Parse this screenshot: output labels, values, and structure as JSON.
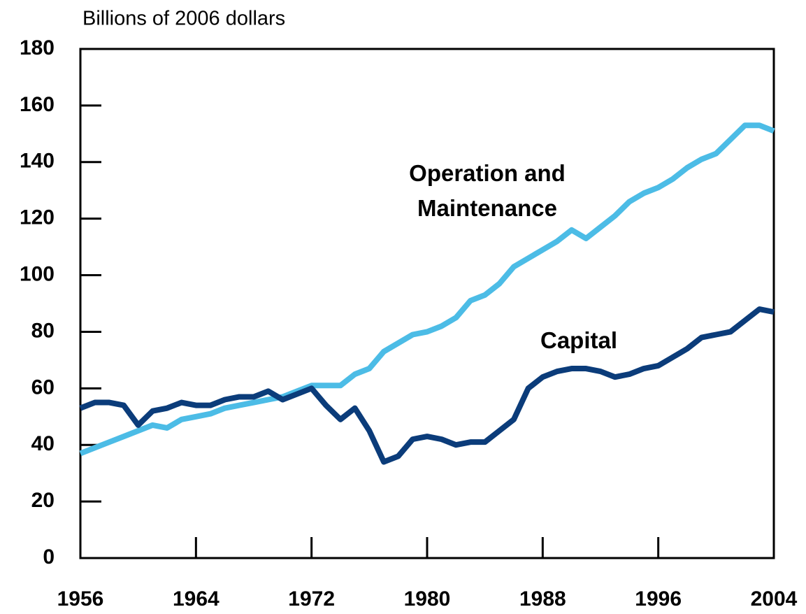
{
  "chart_data": {
    "type": "line",
    "y_axis_label": "Billions of 2006 dollars",
    "x": [
      1956,
      1957,
      1958,
      1959,
      1960,
      1961,
      1962,
      1963,
      1964,
      1965,
      1966,
      1967,
      1968,
      1969,
      1970,
      1971,
      1972,
      1973,
      1974,
      1975,
      1976,
      1977,
      1978,
      1979,
      1980,
      1981,
      1982,
      1983,
      1984,
      1985,
      1986,
      1987,
      1988,
      1989,
      1990,
      1991,
      1992,
      1993,
      1994,
      1995,
      1996,
      1997,
      1998,
      1999,
      2000,
      2001,
      2002,
      2003,
      2004
    ],
    "series": [
      {
        "name": "Operation and Maintenance",
        "color": "#4cbce6",
        "values": [
          37,
          39,
          41,
          43,
          45,
          47,
          46,
          49,
          50,
          51,
          53,
          54,
          55,
          56,
          57,
          59,
          61,
          61,
          61,
          65,
          67,
          73,
          76,
          79,
          80,
          82,
          85,
          91,
          93,
          97,
          103,
          106,
          109,
          112,
          116,
          113,
          117,
          121,
          126,
          129,
          131,
          134,
          138,
          141,
          143,
          148,
          153,
          153,
          151
        ]
      },
      {
        "name": "Capital",
        "color": "#0b3c7a",
        "values": [
          53,
          55,
          55,
          54,
          47,
          52,
          53,
          55,
          54,
          54,
          56,
          57,
          57,
          59,
          56,
          58,
          60,
          54,
          49,
          53,
          45,
          34,
          36,
          42,
          43,
          42,
          40,
          41,
          41,
          45,
          49,
          60,
          64,
          66,
          67,
          67,
          66,
          64,
          65,
          67,
          68,
          71,
          74,
          78,
          79,
          80,
          84,
          88,
          87
        ]
      }
    ],
    "xlim": [
      1956,
      2004
    ],
    "xticks": [
      1956,
      1964,
      1972,
      1980,
      1988,
      1996,
      2004
    ],
    "ylim": [
      0,
      180
    ],
    "yticks": [
      0,
      20,
      40,
      60,
      80,
      100,
      120,
      140,
      160,
      180
    ]
  }
}
